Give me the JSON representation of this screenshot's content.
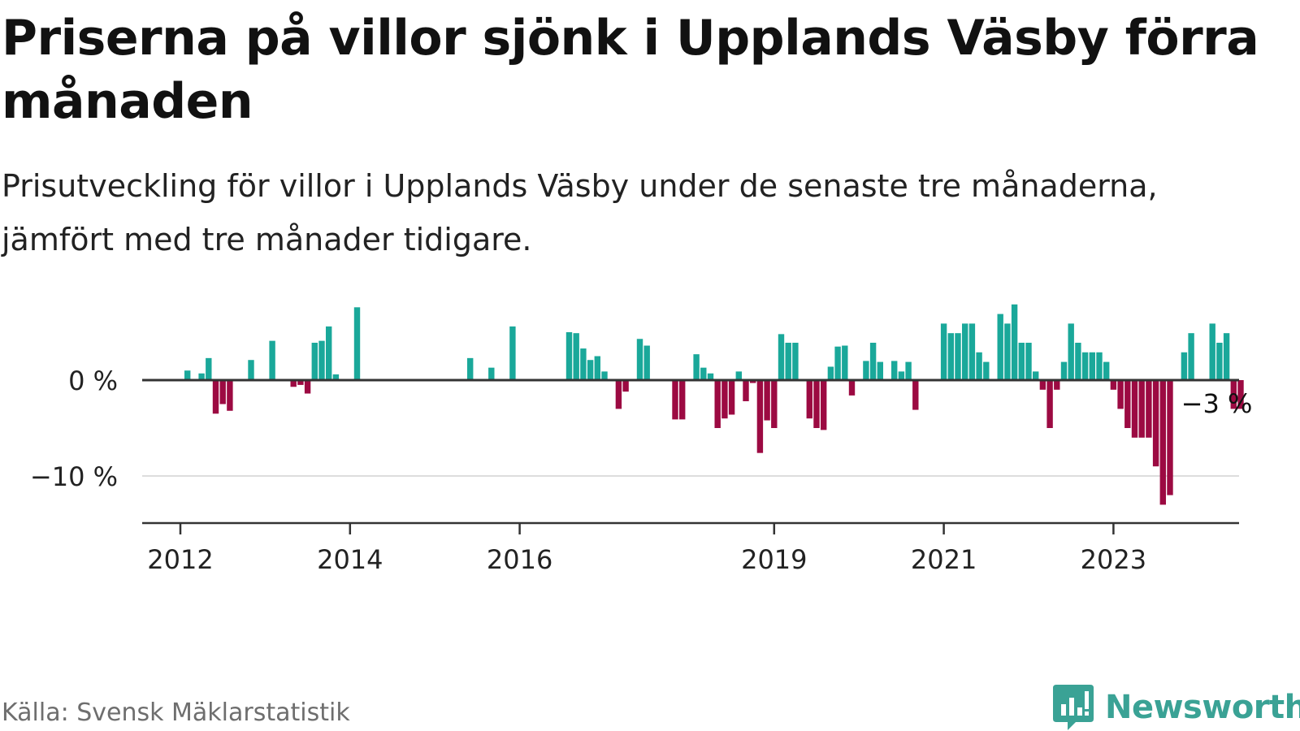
{
  "title": "Priserna på villor sjönk i Upplands Väsby förra månaden",
  "subtitle": "Prisutveckling för villor i Upplands Väsby under de senaste tre månaderna, jämfört med tre månader tidigare.",
  "source": "Källa: Svensk Mäklarstatistik",
  "brand": "Newsworthy",
  "colors": {
    "positive": "#1aa89a",
    "negative": "#9c0a42",
    "axis": "#333333",
    "grid": "#dddddd",
    "brand": "#3aa295"
  },
  "chart_data": {
    "type": "bar",
    "title": "Priserna på villor sjönk i Upplands Väsby förra månaden",
    "xlabel": "",
    "ylabel": "",
    "ylim": [
      -15,
      8
    ],
    "yticks": [
      {
        "value": 0,
        "label": "0 %"
      },
      {
        "value": -10,
        "label": "−10 %"
      }
    ],
    "xticks": [
      {
        "index": 0,
        "label": "2012"
      },
      {
        "index": 24,
        "label": "2014"
      },
      {
        "index": 48,
        "label": "2016"
      },
      {
        "index": 84,
        "label": "2019"
      },
      {
        "index": 108,
        "label": "2021"
      },
      {
        "index": 132,
        "label": "2023"
      }
    ],
    "start": "2012-01",
    "values": [
      null,
      1,
      null,
      0.7,
      2.3,
      -3.5,
      -2.5,
      -3.2,
      null,
      null,
      2.1,
      null,
      null,
      4.1,
      null,
      null,
      -0.7,
      -0.5,
      -1.4,
      3.9,
      4.1,
      5.6,
      0.6,
      null,
      null,
      7.6,
      null,
      null,
      null,
      null,
      null,
      null,
      null,
      null,
      null,
      null,
      null,
      null,
      null,
      null,
      null,
      2.3,
      null,
      null,
      1.3,
      null,
      null,
      5.6,
      null,
      null,
      null,
      null,
      null,
      null,
      null,
      5.0,
      4.9,
      3.3,
      2.1,
      2.5,
      0.9,
      null,
      -3.0,
      -1.2,
      null,
      4.3,
      3.6,
      null,
      null,
      null,
      -4.1,
      -4.1,
      null,
      2.7,
      1.3,
      0.7,
      -5.0,
      -4.0,
      -3.6,
      0.9,
      -2.2,
      -0.3,
      -7.6,
      -4.2,
      -5.0,
      4.8,
      3.9,
      3.9,
      null,
      -4.0,
      -5.0,
      -5.2,
      1.4,
      3.5,
      3.6,
      -1.6,
      null,
      2.0,
      3.9,
      1.9,
      null,
      2.0,
      0.9,
      1.9,
      -3.1,
      null,
      null,
      null,
      5.9,
      4.9,
      4.9,
      5.9,
      5.9,
      2.9,
      1.9,
      null,
      6.9,
      5.9,
      7.9,
      3.9,
      3.9,
      0.9,
      -1.0,
      -5.0,
      -1.0,
      1.9,
      5.9,
      3.9,
      2.9,
      2.9,
      2.9,
      1.9,
      -1.0,
      -3.0,
      -5.0,
      -6.0,
      -6.0,
      -6.0,
      -9.0,
      -13.0,
      -12.0,
      null,
      2.9,
      4.9,
      null,
      null,
      5.9,
      3.9,
      4.9,
      -3.0,
      -3.0
    ],
    "annotation": {
      "index": 142,
      "label": "−3 %"
    }
  }
}
